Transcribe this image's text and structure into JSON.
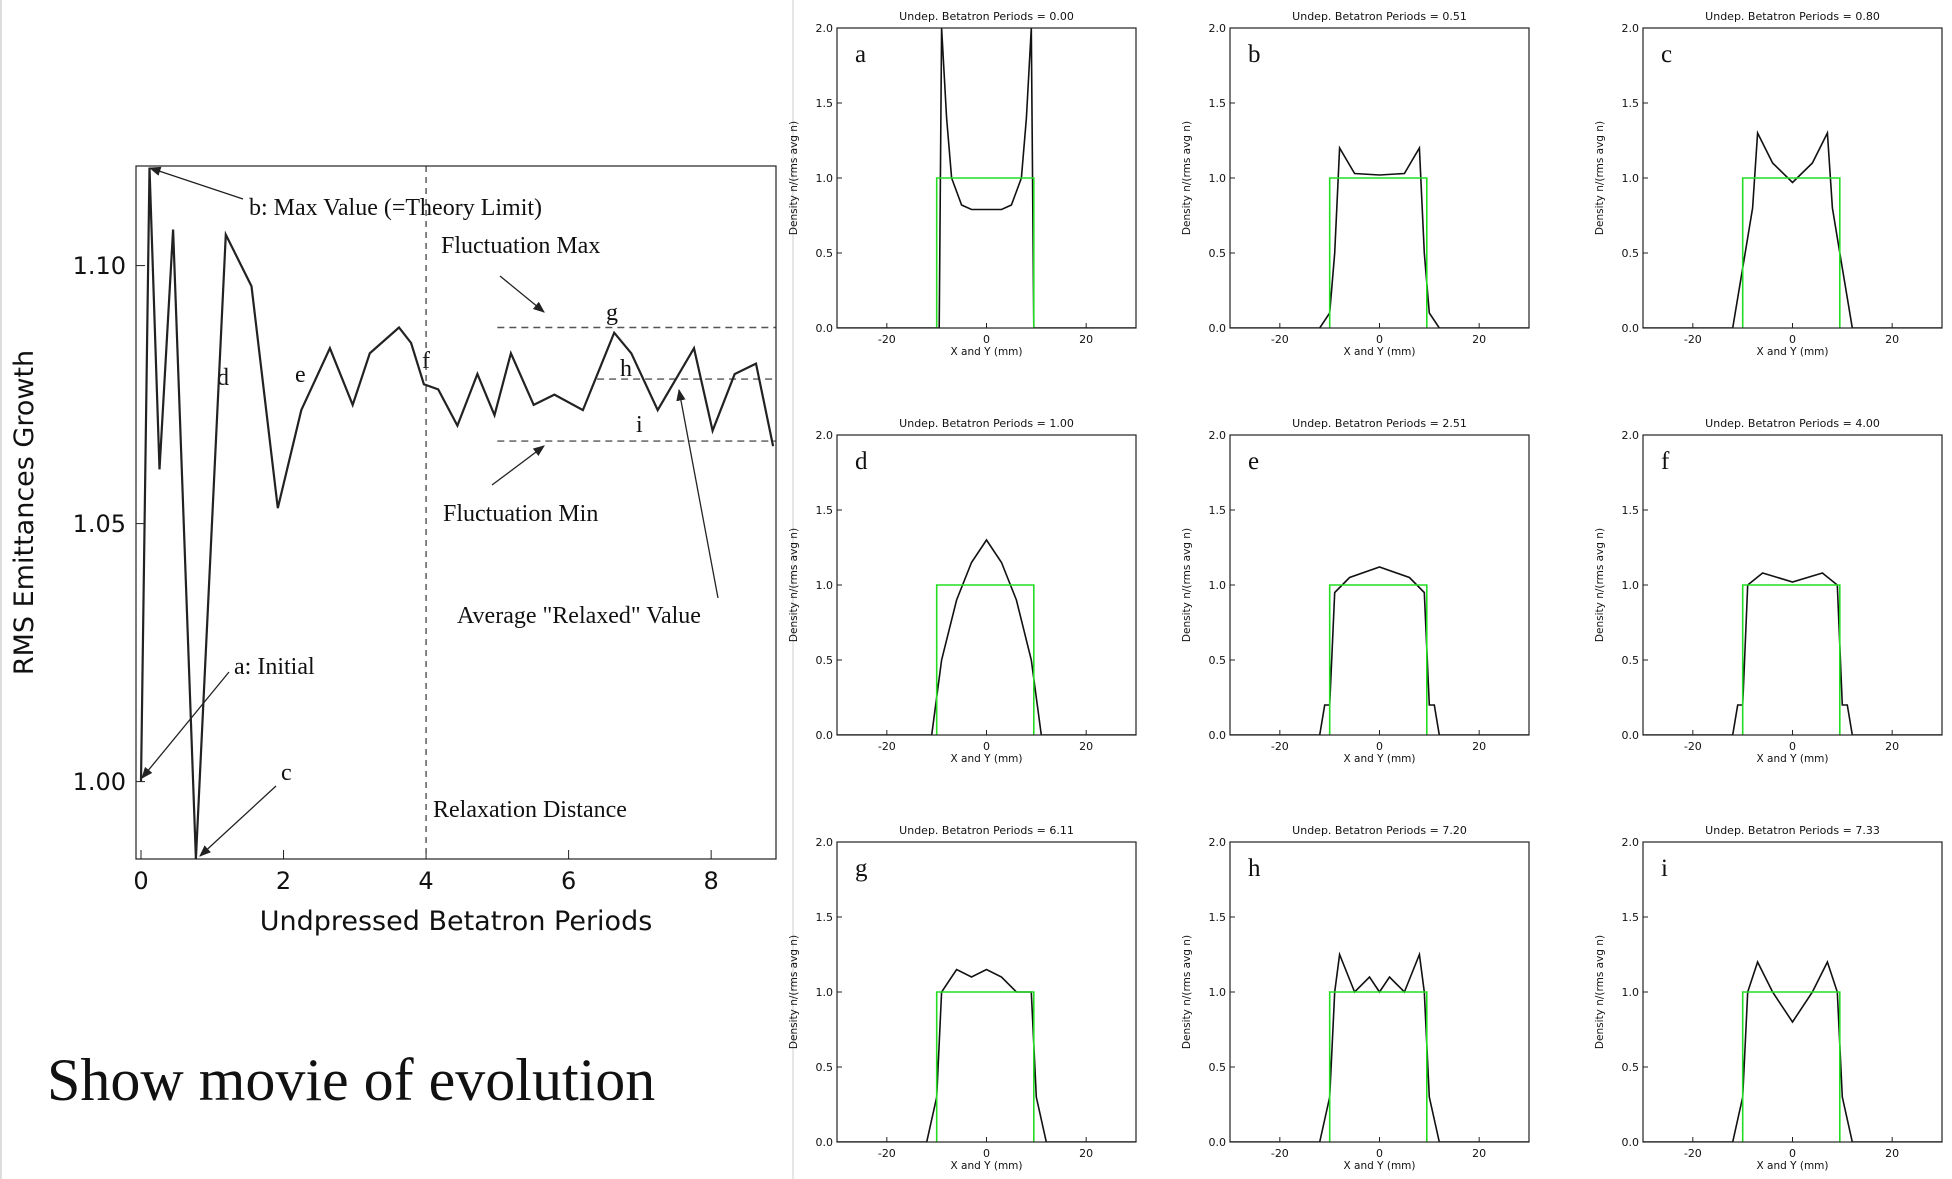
{
  "chart_data": [
    {
      "type": "line",
      "title": null,
      "xlabel": "Undpressed Betatron Periods",
      "ylabel": "RMS Emittances Growth",
      "x": [
        0,
        0.12,
        0.26,
        0.45,
        0.77,
        1.19,
        1.55,
        1.92,
        2.25,
        2.65,
        2.97,
        3.21,
        3.62,
        3.79,
        3.97,
        4.17,
        4.44,
        4.72,
        4.96,
        5.19,
        5.51,
        5.8,
        6.2,
        6.64,
        6.88,
        7.25,
        7.76,
        8.02,
        8.33,
        8.63,
        8.87
      ],
      "series": [
        {
          "color": "#222222",
          "values": [
            1.0,
            1.119,
            1.0605,
            1.107,
            0.985,
            1.106,
            1.096,
            1.053,
            1.072,
            1.084,
            1.073,
            1.083,
            1.088,
            1.085,
            1.077,
            1.076,
            1.069,
            1.079,
            1.071,
            1.083,
            1.073,
            1.075,
            1.072,
            1.087,
            1.083,
            1.072,
            1.084,
            1.068,
            1.079,
            1.081,
            1.065
          ]
        }
      ],
      "xlim": [
        -0.07,
        8.91
      ],
      "ylim": [
        0.985,
        1.1193
      ],
      "xticks": [
        0,
        2,
        4,
        6,
        8
      ],
      "yticks": [
        {
          "value": 1,
          "label": "1.00"
        },
        1.05,
        {
          "value": 1.1,
          "label": "1.10"
        }
      ],
      "reference_lines": [
        {
          "value": 1.088,
          "from": 5,
          "to": 8.91
        },
        {
          "value": 1.066,
          "from": 5,
          "to": 8.91
        },
        {
          "value": 1.078,
          "from": 6.4,
          "to": 8.91
        }
      ],
      "vline": 4,
      "annotations": [
        "b: Max Value (=Theory Limit)",
        "Fluctuation Max",
        "g",
        "h",
        "i",
        "d",
        "e",
        "f",
        "Fluctuation Min",
        "Average \"Relaxed\" Value",
        "a: Initial",
        "c",
        "Relaxation Distance"
      ]
    },
    {
      "type": "line",
      "title": "Undep. Betatron Periods = 0.00",
      "label": "a",
      "xlabel": "X and Y (mm)",
      "ylabel": "Density n/(rms avg n)",
      "series": [
        {
          "color": "#111111",
          "x": [
            -30,
            -9.5,
            -9,
            -8,
            -7,
            -5,
            -3,
            0,
            3,
            5,
            7,
            8,
            9,
            9.5,
            30
          ],
          "values": [
            0,
            0,
            2.0,
            1.4,
            1.0,
            0.82,
            0.79,
            0.79,
            0.79,
            0.82,
            1.0,
            1.4,
            2.0,
            0,
            0
          ]
        },
        {
          "color": "#22dd22",
          "x": [
            -10,
            -10,
            9.5,
            9.5
          ],
          "values": [
            0,
            1,
            1,
            0
          ]
        }
      ],
      "xlim": [
        -30,
        30
      ],
      "ylim": [
        0,
        2
      ],
      "xticks": [
        -20,
        0,
        20
      ],
      "yticks": [
        {
          "value": 0,
          "label": "0.0"
        },
        0.5,
        {
          "value": 1,
          "label": "1.0"
        },
        1.5,
        {
          "value": 2,
          "label": "2.0"
        }
      ]
    },
    {
      "type": "line",
      "title": "Undep. Betatron Periods = 0.51",
      "label": "b",
      "xlabel": "X and Y (mm)",
      "ylabel": "Density n/(rms avg n)",
      "series": [
        {
          "color": "#111111",
          "x": [
            -30,
            -12,
            -10,
            -9,
            -8,
            -5,
            0,
            5,
            8,
            9,
            10,
            12,
            30
          ],
          "values": [
            0,
            0,
            0.1,
            0.5,
            1.2,
            1.03,
            1.02,
            1.03,
            1.2,
            0.5,
            0.1,
            0,
            0
          ]
        },
        {
          "color": "#22dd22",
          "x": [
            -10,
            -10,
            9.5,
            9.5
          ],
          "values": [
            0,
            1,
            1,
            0
          ]
        }
      ],
      "xlim": [
        -30,
        30
      ],
      "ylim": [
        0,
        2
      ],
      "xticks": [
        -20,
        0,
        20
      ],
      "yticks": [
        {
          "value": 0,
          "label": "0.0"
        },
        0.5,
        {
          "value": 1,
          "label": "1.0"
        },
        1.5,
        {
          "value": 2,
          "label": "2.0"
        }
      ]
    },
    {
      "type": "line",
      "title": "Undep. Betatron Periods = 0.80",
      "label": "c",
      "xlabel": "X and Y (mm)",
      "ylabel": "Density n/(rms avg n)",
      "series": [
        {
          "color": "#111111",
          "x": [
            -30,
            -12,
            -10,
            -8,
            -7,
            -4,
            0,
            4,
            7,
            8,
            10,
            12,
            30
          ],
          "values": [
            0,
            0,
            0.4,
            0.8,
            1.3,
            1.1,
            0.97,
            1.1,
            1.3,
            0.8,
            0.4,
            0,
            0
          ]
        },
        {
          "color": "#22dd22",
          "x": [
            -10,
            -10,
            9.5,
            9.5
          ],
          "values": [
            0,
            1,
            1,
            0
          ]
        }
      ],
      "xlim": [
        -30,
        30
      ],
      "ylim": [
        0,
        2
      ],
      "xticks": [
        -20,
        0,
        20
      ],
      "yticks": [
        {
          "value": 0,
          "label": "0.0"
        },
        0.5,
        {
          "value": 1,
          "label": "1.0"
        },
        1.5,
        {
          "value": 2,
          "label": "2.0"
        }
      ]
    },
    {
      "type": "line",
      "title": "Undep. Betatron Periods = 1.00",
      "label": "d",
      "xlabel": "X and Y (mm)",
      "ylabel": "Density n/(rms avg n)",
      "series": [
        {
          "color": "#111111",
          "x": [
            -30,
            -11,
            -9,
            -6,
            -3,
            0,
            3,
            6,
            9,
            11,
            30
          ],
          "values": [
            0,
            0,
            0.5,
            0.9,
            1.15,
            1.3,
            1.15,
            0.9,
            0.5,
            0,
            0
          ]
        },
        {
          "color": "#22dd22",
          "x": [
            -10,
            -10,
            9.5,
            9.5
          ],
          "values": [
            0,
            1,
            1,
            0
          ]
        }
      ],
      "xlim": [
        -30,
        30
      ],
      "ylim": [
        0,
        2
      ],
      "xticks": [
        -20,
        0,
        20
      ],
      "yticks": [
        {
          "value": 0,
          "label": "0.0"
        },
        0.5,
        {
          "value": 1,
          "label": "1.0"
        },
        1.5,
        {
          "value": 2,
          "label": "2.0"
        }
      ]
    },
    {
      "type": "line",
      "title": "Undep. Betatron Periods = 2.51",
      "label": "e",
      "xlabel": "X and Y (mm)",
      "ylabel": "Density n/(rms avg n)",
      "series": [
        {
          "color": "#111111",
          "x": [
            -30,
            -12,
            -11,
            -10,
            -9,
            -6,
            0,
            6,
            9,
            10,
            11,
            12,
            30
          ],
          "values": [
            0,
            0,
            0.2,
            0.2,
            0.95,
            1.05,
            1.12,
            1.05,
            0.95,
            0.2,
            0.2,
            0,
            0
          ]
        },
        {
          "color": "#22dd22",
          "x": [
            -10,
            -10,
            9.5,
            9.5
          ],
          "values": [
            0,
            1,
            1,
            0
          ]
        }
      ],
      "xlim": [
        -30,
        30
      ],
      "ylim": [
        0,
        2
      ],
      "xticks": [
        -20,
        0,
        20
      ],
      "yticks": [
        {
          "value": 0,
          "label": "0.0"
        },
        0.5,
        {
          "value": 1,
          "label": "1.0"
        },
        1.5,
        {
          "value": 2,
          "label": "2.0"
        }
      ]
    },
    {
      "type": "line",
      "title": "Undep. Betatron Periods = 4.00",
      "label": "f",
      "xlabel": "X and Y (mm)",
      "ylabel": "Density n/(rms avg n)",
      "series": [
        {
          "color": "#111111",
          "x": [
            -30,
            -12,
            -11,
            -10,
            -9,
            -6,
            0,
            6,
            9,
            10,
            11,
            12,
            30
          ],
          "values": [
            0,
            0,
            0.2,
            0.2,
            1.0,
            1.08,
            1.02,
            1.08,
            1.0,
            0.2,
            0.2,
            0,
            0
          ]
        },
        {
          "color": "#22dd22",
          "x": [
            -10,
            -10,
            9.5,
            9.5
          ],
          "values": [
            0,
            1,
            1,
            0
          ]
        }
      ],
      "xlim": [
        -30,
        30
      ],
      "ylim": [
        0,
        2
      ],
      "xticks": [
        -20,
        0,
        20
      ],
      "yticks": [
        {
          "value": 0,
          "label": "0.0"
        },
        0.5,
        {
          "value": 1,
          "label": "1.0"
        },
        1.5,
        {
          "value": 2,
          "label": "2.0"
        }
      ]
    },
    {
      "type": "line",
      "title": "Undep. Betatron Periods = 6.11",
      "label": "g",
      "xlabel": "X and Y (mm)",
      "ylabel": "Density n/(rms avg n)",
      "series": [
        {
          "color": "#111111",
          "x": [
            -30,
            -12,
            -10,
            -9,
            -6,
            -3,
            0,
            3,
            6,
            9,
            10,
            12,
            30
          ],
          "values": [
            0,
            0,
            0.3,
            1.0,
            1.15,
            1.1,
            1.15,
            1.1,
            1.0,
            1.0,
            0.3,
            0,
            0
          ]
        },
        {
          "color": "#22dd22",
          "x": [
            -10,
            -10,
            9.5,
            9.5
          ],
          "values": [
            0,
            1,
            1,
            0
          ]
        }
      ],
      "xlim": [
        -30,
        30
      ],
      "ylim": [
        0,
        2
      ],
      "xticks": [
        -20,
        0,
        20
      ],
      "yticks": [
        {
          "value": 0,
          "label": "0.0"
        },
        0.5,
        {
          "value": 1,
          "label": "1.0"
        },
        1.5,
        {
          "value": 2,
          "label": "2.0"
        }
      ]
    },
    {
      "type": "line",
      "title": "Undep. Betatron Periods = 7.20",
      "label": "h",
      "xlabel": "X and Y (mm)",
      "ylabel": "Density n/(rms avg n)",
      "series": [
        {
          "color": "#111111",
          "x": [
            -30,
            -12,
            -10,
            -9,
            -8,
            -5,
            -2,
            0,
            2,
            5,
            8,
            9,
            10,
            12,
            30
          ],
          "values": [
            0,
            0,
            0.3,
            1.0,
            1.25,
            1.0,
            1.1,
            1.0,
            1.1,
            1.0,
            1.25,
            1.0,
            0.3,
            0,
            0
          ]
        },
        {
          "color": "#22dd22",
          "x": [
            -10,
            -10,
            9.5,
            9.5
          ],
          "values": [
            0,
            1,
            1,
            0
          ]
        }
      ],
      "xlim": [
        -30,
        30
      ],
      "ylim": [
        0,
        2
      ],
      "xticks": [
        -20,
        0,
        20
      ],
      "yticks": [
        {
          "value": 0,
          "label": "0.0"
        },
        0.5,
        {
          "value": 1,
          "label": "1.0"
        },
        1.5,
        {
          "value": 2,
          "label": "2.0"
        }
      ]
    },
    {
      "type": "line",
      "title": "Undep. Betatron Periods = 7.33",
      "label": "i",
      "xlabel": "X and Y (mm)",
      "ylabel": "Density n/(rms avg n)",
      "series": [
        {
          "color": "#111111",
          "x": [
            -30,
            -12,
            -10,
            -9,
            -7,
            -4,
            0,
            4,
            7,
            9,
            10,
            12,
            30
          ],
          "values": [
            0,
            0,
            0.3,
            1.0,
            1.2,
            1.0,
            0.8,
            1.0,
            1.2,
            1.0,
            0.3,
            0,
            0
          ]
        },
        {
          "color": "#22dd22",
          "x": [
            -10,
            -10,
            9.5,
            9.5
          ],
          "values": [
            0,
            1,
            1,
            0
          ]
        }
      ],
      "xlim": [
        -30,
        30
      ],
      "ylim": [
        0,
        2
      ],
      "xticks": [
        -20,
        0,
        20
      ],
      "yticks": [
        {
          "value": 0,
          "label": "0.0"
        },
        0.5,
        {
          "value": 1,
          "label": "1.0"
        },
        1.5,
        {
          "value": 2,
          "label": "2.0"
        }
      ]
    }
  ],
  "caption": "Show movie of evolution"
}
